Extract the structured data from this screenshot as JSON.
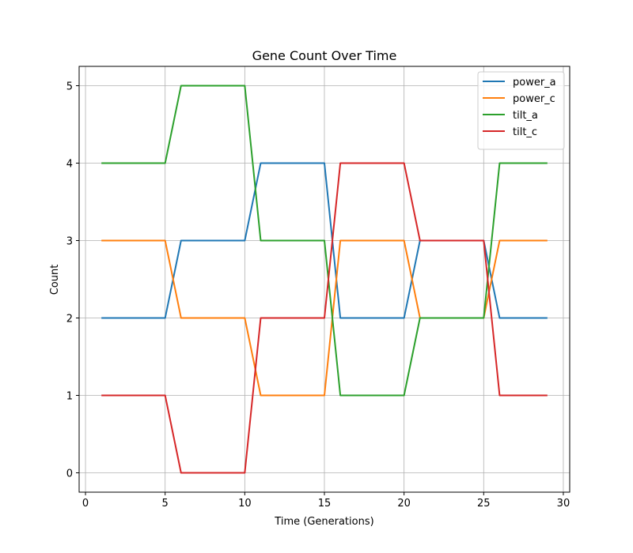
{
  "chart_data": {
    "type": "line",
    "title": "Gene Count Over Time",
    "xlabel": "Time (Generations)",
    "ylabel": "Count",
    "xlim": [
      -0.4,
      30.4
    ],
    "ylim": [
      -0.25,
      5.25
    ],
    "xticks": [
      0,
      5,
      10,
      15,
      20,
      25,
      30
    ],
    "yticks": [
      0,
      1,
      2,
      3,
      4,
      5
    ],
    "grid": true,
    "legend_position": "top-right",
    "x": [
      1,
      2,
      3,
      4,
      5,
      6,
      7,
      8,
      9,
      10,
      11,
      12,
      13,
      14,
      15,
      16,
      17,
      18,
      19,
      20,
      21,
      22,
      23,
      24,
      25,
      26,
      27,
      28,
      29
    ],
    "series": [
      {
        "name": "power_a",
        "color": "#1f77b4",
        "values": [
          2,
          2,
          2,
          2,
          2,
          3,
          3,
          3,
          3,
          3,
          4,
          4,
          4,
          4,
          4,
          2,
          2,
          2,
          2,
          2,
          3,
          3,
          3,
          3,
          3,
          2,
          2,
          2,
          2
        ]
      },
      {
        "name": "power_c",
        "color": "#ff7f0e",
        "values": [
          3,
          3,
          3,
          3,
          3,
          2,
          2,
          2,
          2,
          2,
          1,
          1,
          1,
          1,
          1,
          3,
          3,
          3,
          3,
          3,
          2,
          2,
          2,
          2,
          2,
          3,
          3,
          3,
          3
        ]
      },
      {
        "name": "tilt_a",
        "color": "#2ca02c",
        "values": [
          4,
          4,
          4,
          4,
          4,
          5,
          5,
          5,
          5,
          5,
          3,
          3,
          3,
          3,
          3,
          1,
          1,
          1,
          1,
          1,
          2,
          2,
          2,
          2,
          2,
          4,
          4,
          4,
          4
        ]
      },
      {
        "name": "tilt_c",
        "color": "#d62728",
        "values": [
          1,
          1,
          1,
          1,
          1,
          0,
          0,
          0,
          0,
          0,
          2,
          2,
          2,
          2,
          2,
          4,
          4,
          4,
          4,
          4,
          3,
          3,
          3,
          3,
          3,
          1,
          1,
          1,
          1
        ]
      }
    ]
  }
}
